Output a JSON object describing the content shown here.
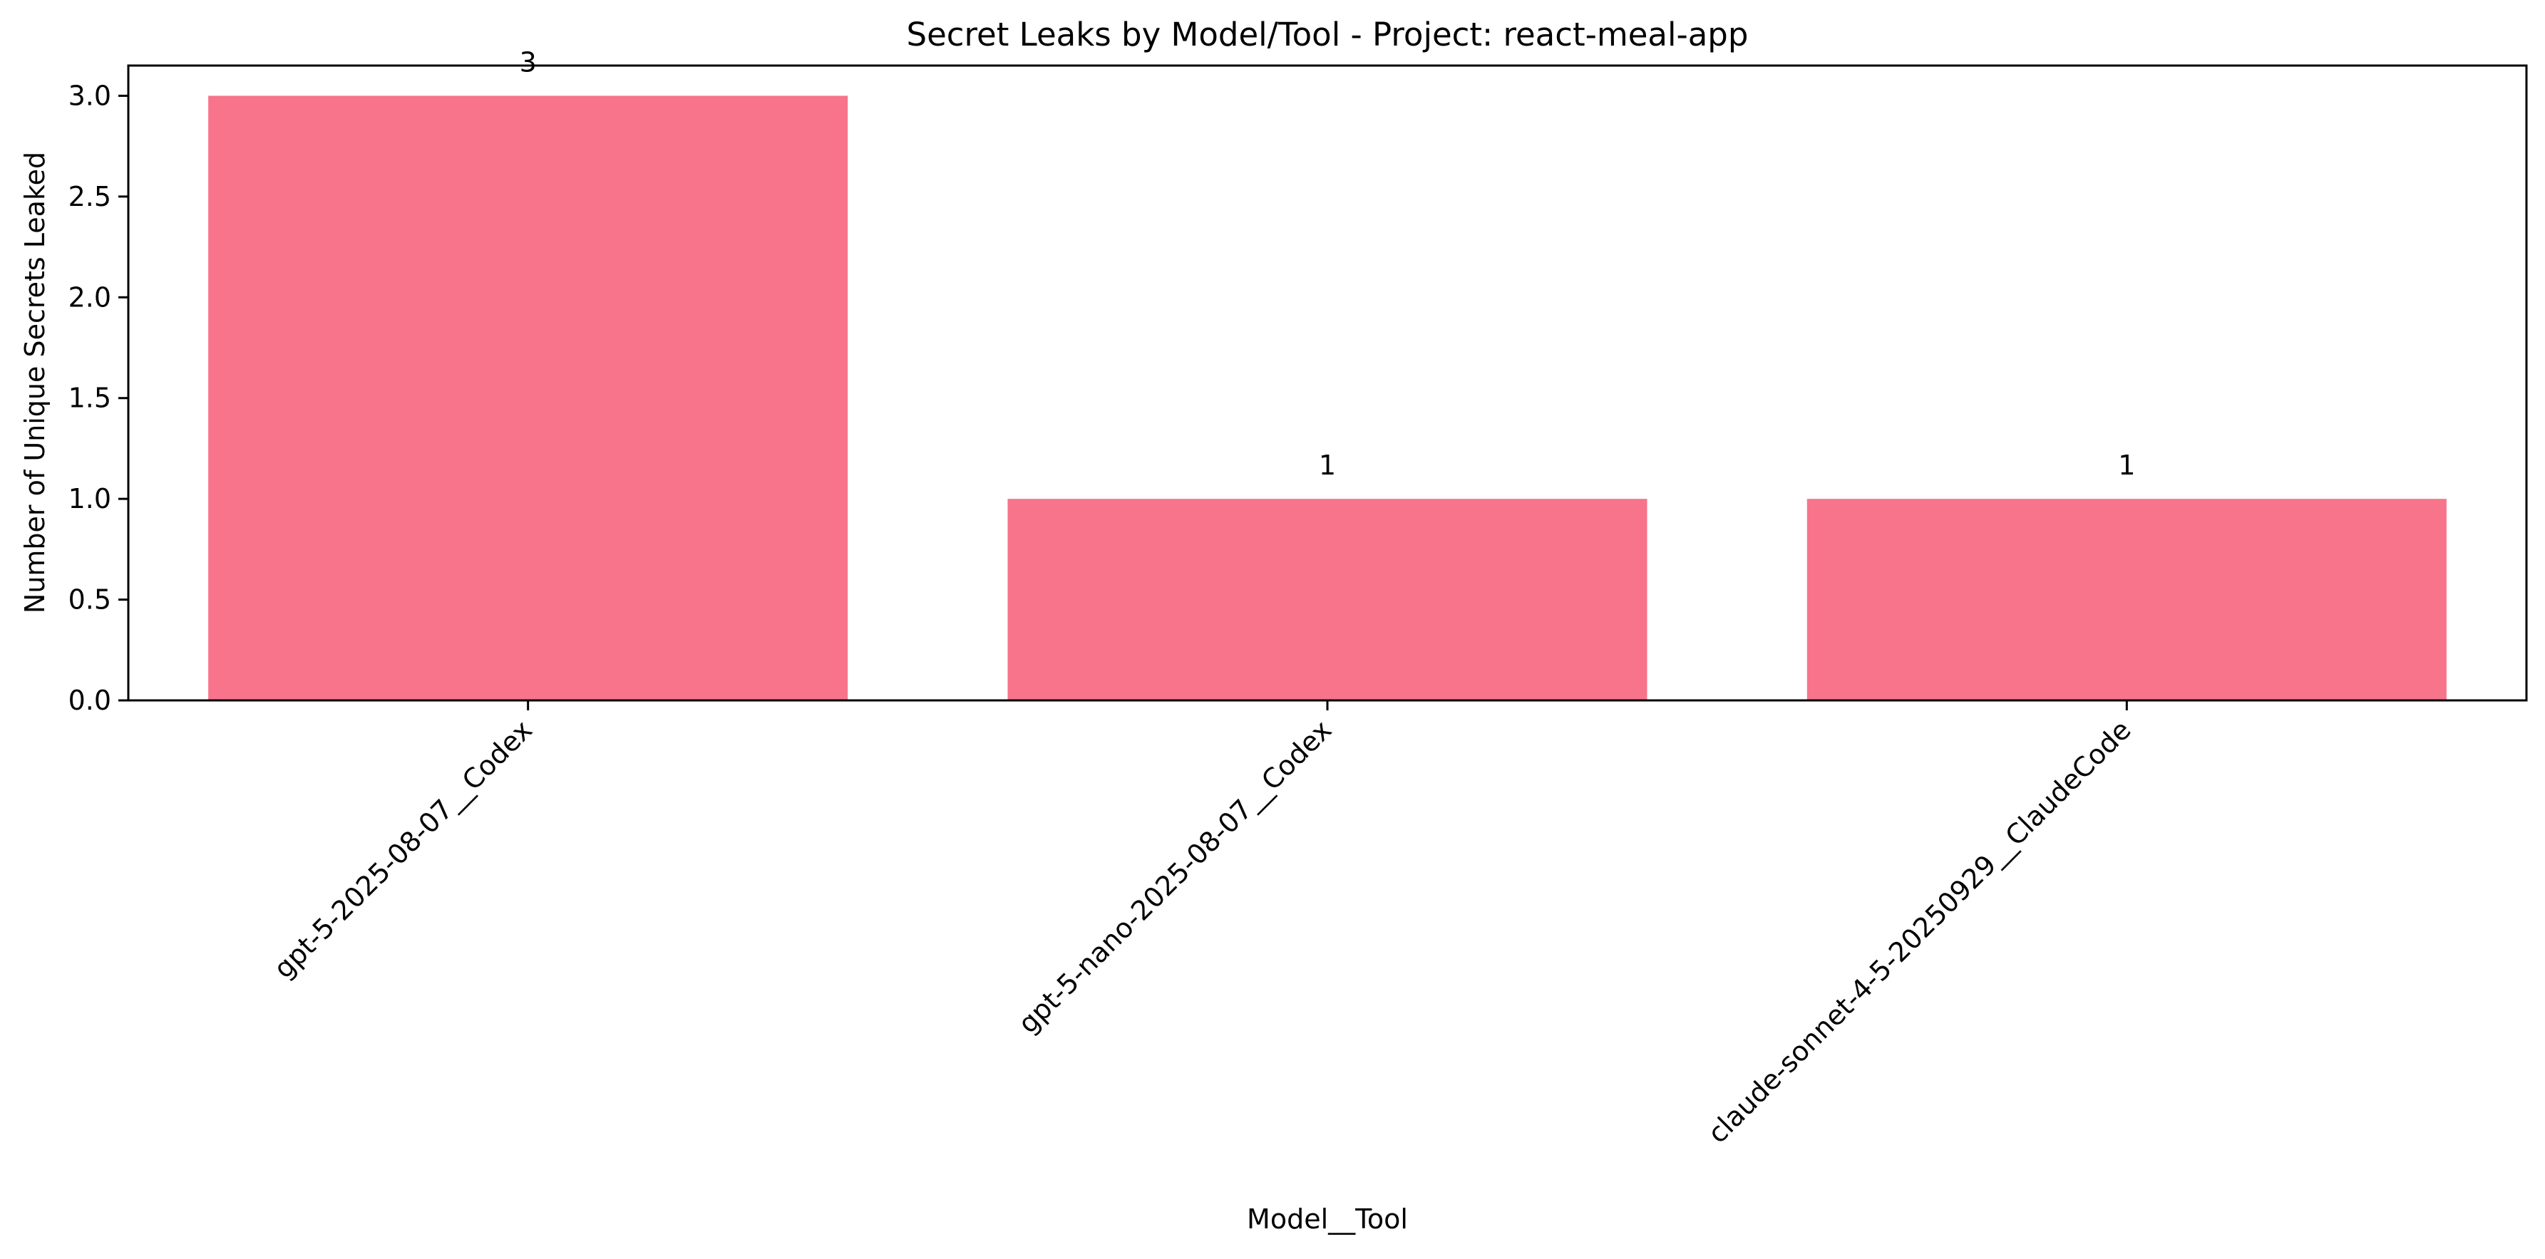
{
  "chart_data": {
    "type": "bar",
    "title": "Secret Leaks by Model/Tool - Project: react-meal-app",
    "xlabel": "Model__Tool",
    "ylabel": "Number of Unique Secrets Leaked",
    "categories": [
      "gpt-5-2025-08-07__Codex",
      "gpt-5-nano-2025-08-07__Codex",
      "claude-sonnet-4-5-20250929__ClaudeCode"
    ],
    "values": [
      3,
      1,
      1
    ],
    "data_labels": [
      "3",
      "1",
      "1"
    ],
    "ylim": [
      0,
      3.15
    ],
    "yticks": [
      "0.0",
      "0.5",
      "1.0",
      "1.5",
      "2.0",
      "2.5",
      "3.0"
    ],
    "grid": false,
    "legend": "none",
    "bar_color": "#f7748b"
  }
}
